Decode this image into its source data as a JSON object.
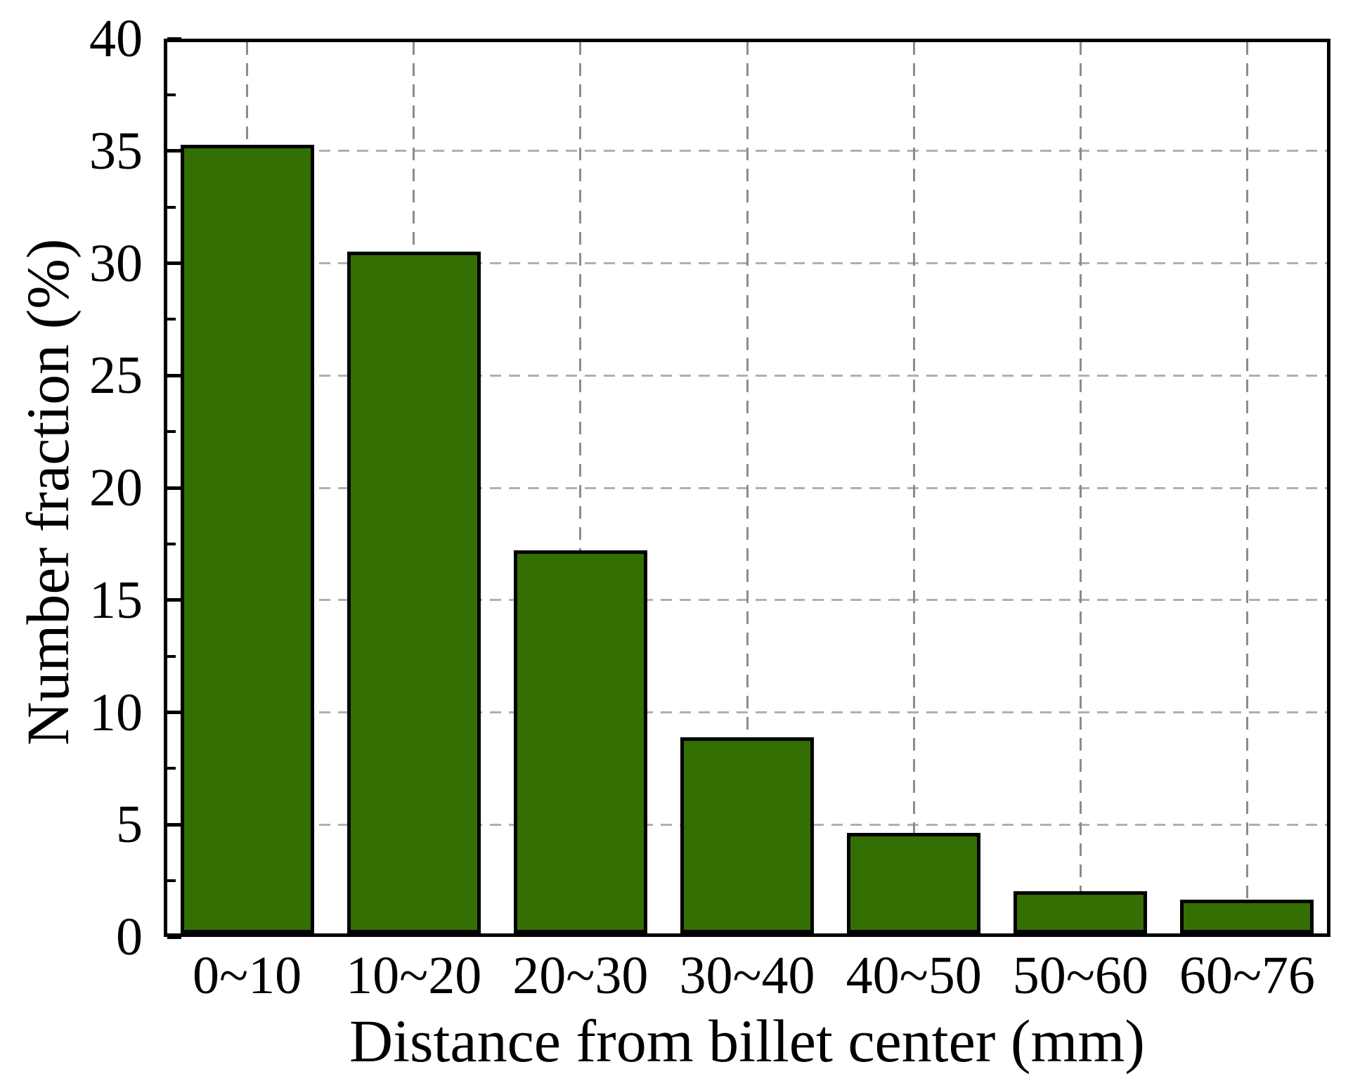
{
  "chart_data": {
    "type": "bar",
    "title": "",
    "categories": [
      "0~10",
      "10~20",
      "20~30",
      "30~40",
      "40~50",
      "50~60",
      "60~76"
    ],
    "values": [
      35.4,
      30.6,
      17.2,
      8.8,
      4.5,
      1.9,
      1.5
    ],
    "xlabel": "Distance from billet center (mm)",
    "ylabel": "Number fraction (%)",
    "ylim": [
      0,
      40
    ],
    "yticks": [
      0,
      5,
      10,
      15,
      20,
      25,
      30,
      35,
      40
    ],
    "y_minor_tick_step": 2.5,
    "grid": true,
    "legend": "none",
    "bar_color": "#336f02",
    "bar_border_color": "#000000",
    "grid_color_horizontal": "#b0b0b0",
    "grid_color_vertical": "#8c8c8c",
    "axis_color": "#000000",
    "background_color": "#ffffff"
  }
}
